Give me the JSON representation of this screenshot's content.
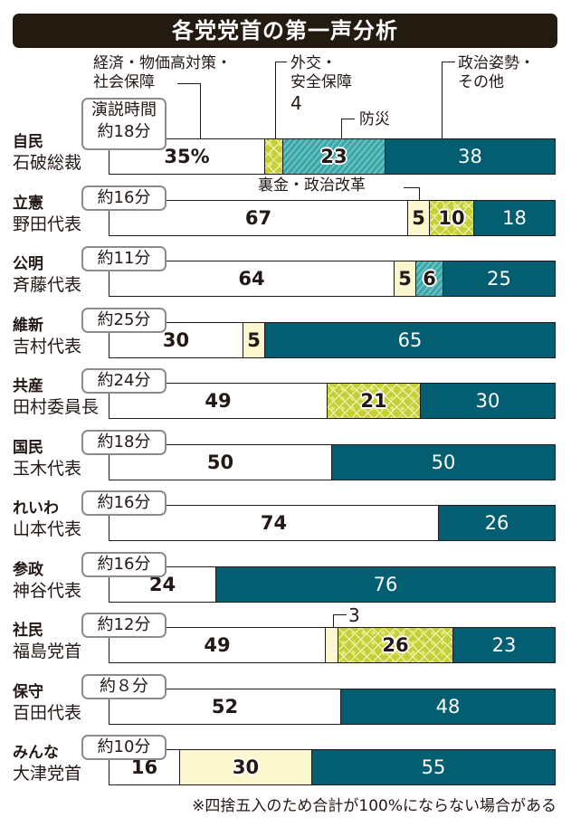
{
  "title": "各党党首の第一声分析",
  "colors": {
    "economy": "#5ab4c5",
    "reform": "#fdf7cf",
    "foreign": "#c5cf3a",
    "disaster": "#3aa6a8",
    "politics": "#035e72",
    "title_bg": "#231a10"
  },
  "legend": {
    "economy": "経済・物価高対策・\n社会保障",
    "foreign": "外交・\n安全保障",
    "foreign_value": "4",
    "disaster": "防災",
    "politics": "政治姿勢・\nその他",
    "reform": "裏金・政治改革"
  },
  "first_time_label": "演説時間",
  "note": "※四捨五入のため合計が100%にならない場合がある",
  "chart_data": {
    "type": "bar",
    "stacked": true,
    "orientation": "horizontal",
    "title": "各党党首の第一声分析",
    "unit": "%",
    "xlim": [
      0,
      100
    ],
    "series_names": [
      "経済・物価高対策・社会保障",
      "裏金・政治改革",
      "外交・安全保障",
      "防災",
      "政治姿勢・その他"
    ],
    "rows": [
      {
        "party": "自民",
        "leader": "石破総裁",
        "time": "約18分",
        "segments": [
          {
            "k": "economy",
            "v": 35,
            "label": "35%"
          },
          {
            "k": "foreign",
            "v": 4,
            "label": ""
          },
          {
            "k": "disaster",
            "v": 23,
            "label": "23"
          },
          {
            "k": "politics",
            "v": 38,
            "label": "38"
          }
        ]
      },
      {
        "party": "立憲",
        "leader": "野田代表",
        "time": "約16分",
        "segments": [
          {
            "k": "economy",
            "v": 67,
            "label": "67"
          },
          {
            "k": "reform",
            "v": 5,
            "label": "5"
          },
          {
            "k": "foreign",
            "v": 10,
            "label": "10"
          },
          {
            "k": "politics",
            "v": 18,
            "label": "18"
          }
        ]
      },
      {
        "party": "公明",
        "leader": "斉藤代表",
        "time": "約11分",
        "segments": [
          {
            "k": "economy",
            "v": 64,
            "label": "64"
          },
          {
            "k": "reform",
            "v": 5,
            "label": "5"
          },
          {
            "k": "disaster",
            "v": 6,
            "label": "6"
          },
          {
            "k": "politics",
            "v": 25,
            "label": "25"
          }
        ]
      },
      {
        "party": "維新",
        "leader": "吉村代表",
        "time": "約25分",
        "segments": [
          {
            "k": "economy",
            "v": 30,
            "label": "30"
          },
          {
            "k": "reform",
            "v": 5,
            "label": "5"
          },
          {
            "k": "politics",
            "v": 65,
            "label": "65"
          }
        ]
      },
      {
        "party": "共産",
        "leader": "田村委員長",
        "time": "約24分",
        "segments": [
          {
            "k": "economy",
            "v": 49,
            "label": "49"
          },
          {
            "k": "foreign",
            "v": 21,
            "label": "21"
          },
          {
            "k": "politics",
            "v": 30,
            "label": "30"
          }
        ]
      },
      {
        "party": "国民",
        "leader": "玉木代表",
        "time": "約18分",
        "segments": [
          {
            "k": "economy",
            "v": 50,
            "label": "50"
          },
          {
            "k": "politics",
            "v": 50,
            "label": "50"
          }
        ]
      },
      {
        "party": "れいわ",
        "leader": "山本代表",
        "time": "約16分",
        "segments": [
          {
            "k": "economy",
            "v": 74,
            "label": "74"
          },
          {
            "k": "politics",
            "v": 26,
            "label": "26"
          }
        ]
      },
      {
        "party": "参政",
        "leader": "神谷代表",
        "time": "約16分",
        "segments": [
          {
            "k": "economy",
            "v": 24,
            "label": "24"
          },
          {
            "k": "politics",
            "v": 76,
            "label": "76"
          }
        ]
      },
      {
        "party": "社民",
        "leader": "福島党首",
        "time": "約12分",
        "segments": [
          {
            "k": "economy",
            "v": 49,
            "label": "49"
          },
          {
            "k": "reform",
            "v": 3,
            "label": ""
          },
          {
            "k": "foreign",
            "v": 26,
            "label": "26"
          },
          {
            "k": "politics",
            "v": 23,
            "label": "23"
          }
        ]
      },
      {
        "party": "保守",
        "leader": "百田代表",
        "time": "約８分",
        "segments": [
          {
            "k": "economy",
            "v": 52,
            "label": "52"
          },
          {
            "k": "politics",
            "v": 48,
            "label": "48"
          }
        ]
      },
      {
        "party": "みんな",
        "leader": "大津党首",
        "time": "約10分",
        "segments": [
          {
            "k": "economy",
            "v": 16,
            "label": "16"
          },
          {
            "k": "reform",
            "v": 30,
            "label": "30"
          },
          {
            "k": "politics",
            "v": 55,
            "label": "55"
          }
        ]
      }
    ],
    "callouts": {
      "shamin_reform": "3"
    }
  }
}
